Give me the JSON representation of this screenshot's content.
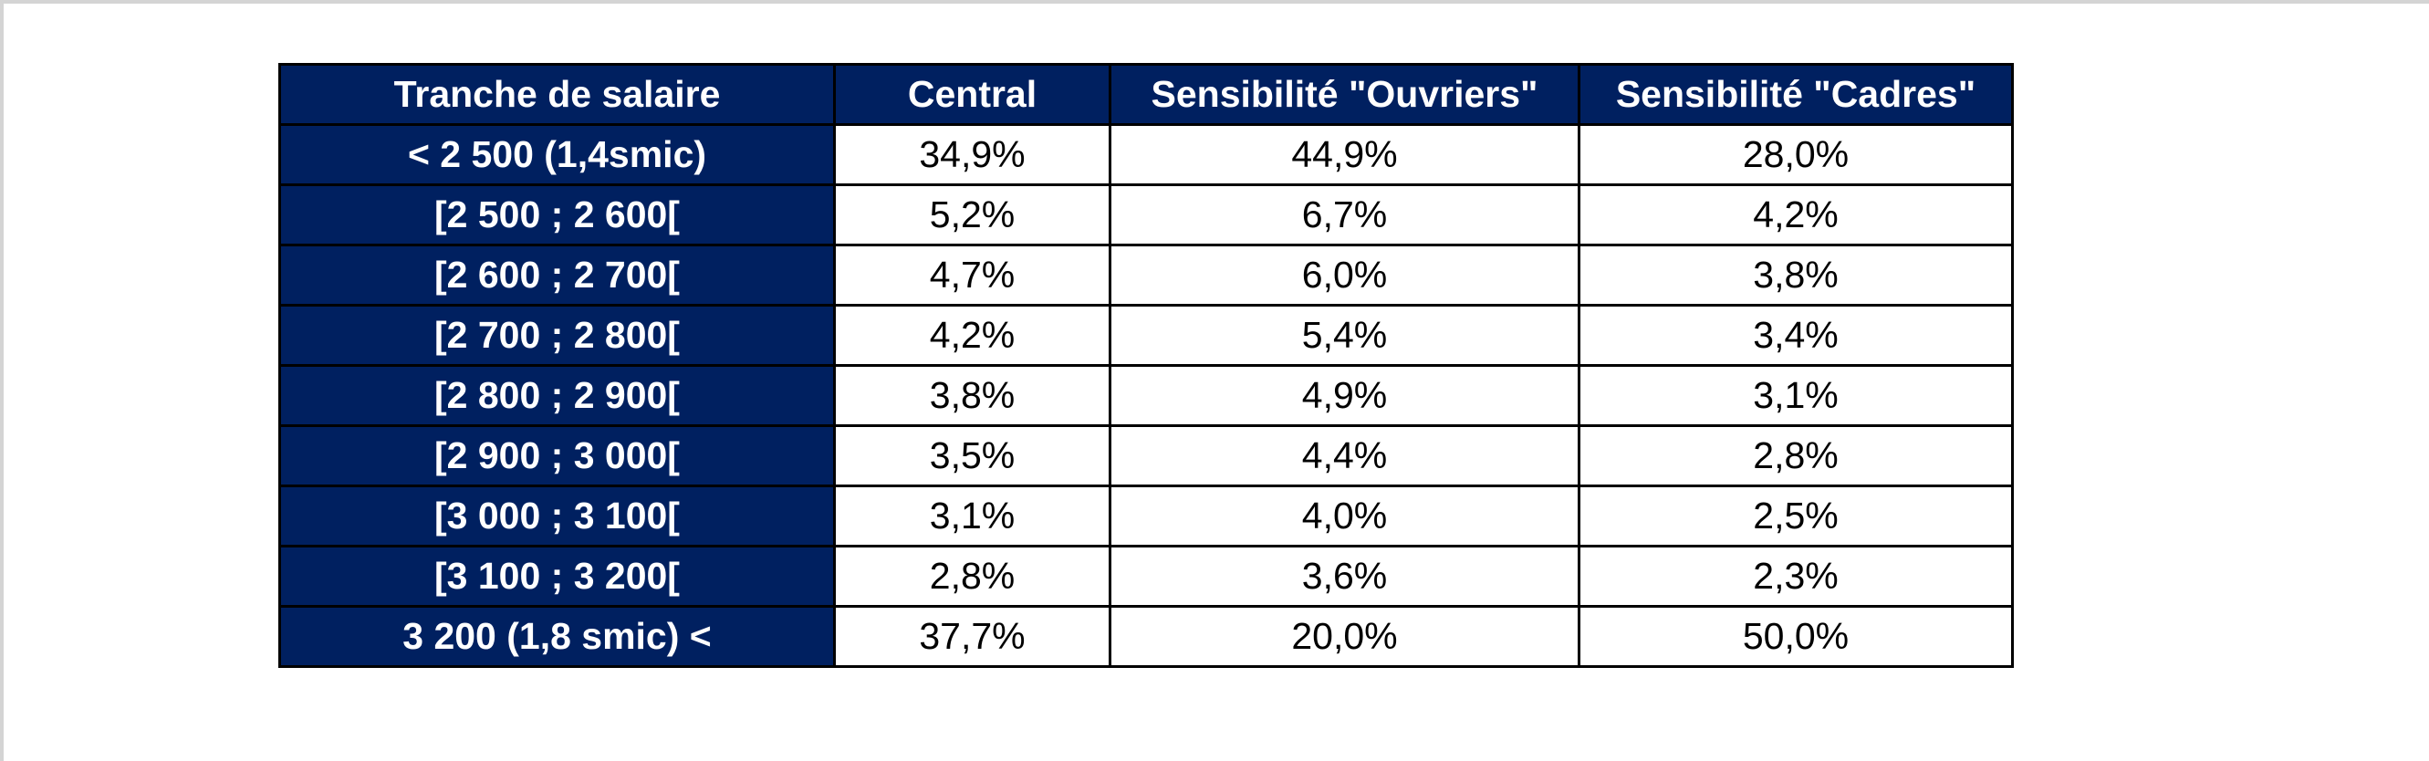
{
  "table": {
    "headers": [
      "Tranche de salaire",
      "Central",
      "Sensibilité \"Ouvriers\"",
      "Sensibilité \"Cadres\""
    ],
    "rows": [
      {
        "tranche": "< 2 500 (1,4smic)",
        "central": "34,9%",
        "ouvriers": "44,9%",
        "cadres": "28,0%"
      },
      {
        "tranche": "[2 500 ; 2 600[",
        "central": "5,2%",
        "ouvriers": "6,7%",
        "cadres": "4,2%"
      },
      {
        "tranche": "[2 600 ; 2 700[",
        "central": "4,7%",
        "ouvriers": "6,0%",
        "cadres": "3,8%"
      },
      {
        "tranche": "[2 700 ; 2 800[",
        "central": "4,2%",
        "ouvriers": "5,4%",
        "cadres": "3,4%"
      },
      {
        "tranche": "[2 800 ; 2 900[",
        "central": "3,8%",
        "ouvriers": "4,9%",
        "cadres": "3,1%"
      },
      {
        "tranche": "[2 900 ; 3 000[",
        "central": "3,5%",
        "ouvriers": "4,4%",
        "cadres": "2,8%"
      },
      {
        "tranche": "[3 000 ; 3 100[",
        "central": "3,1%",
        "ouvriers": "4,0%",
        "cadres": "2,5%"
      },
      {
        "tranche": "[3 100 ; 3 200[",
        "central": "2,8%",
        "ouvriers": "3,6%",
        "cadres": "2,3%"
      },
      {
        "tranche": "3 200 (1,8 smic) <",
        "central": "37,7%",
        "ouvriers": "20,0%",
        "cadres": "50,0%"
      }
    ]
  },
  "colors": {
    "header_background": "#002060",
    "header_text": "#ffffff",
    "border": "#000000"
  }
}
